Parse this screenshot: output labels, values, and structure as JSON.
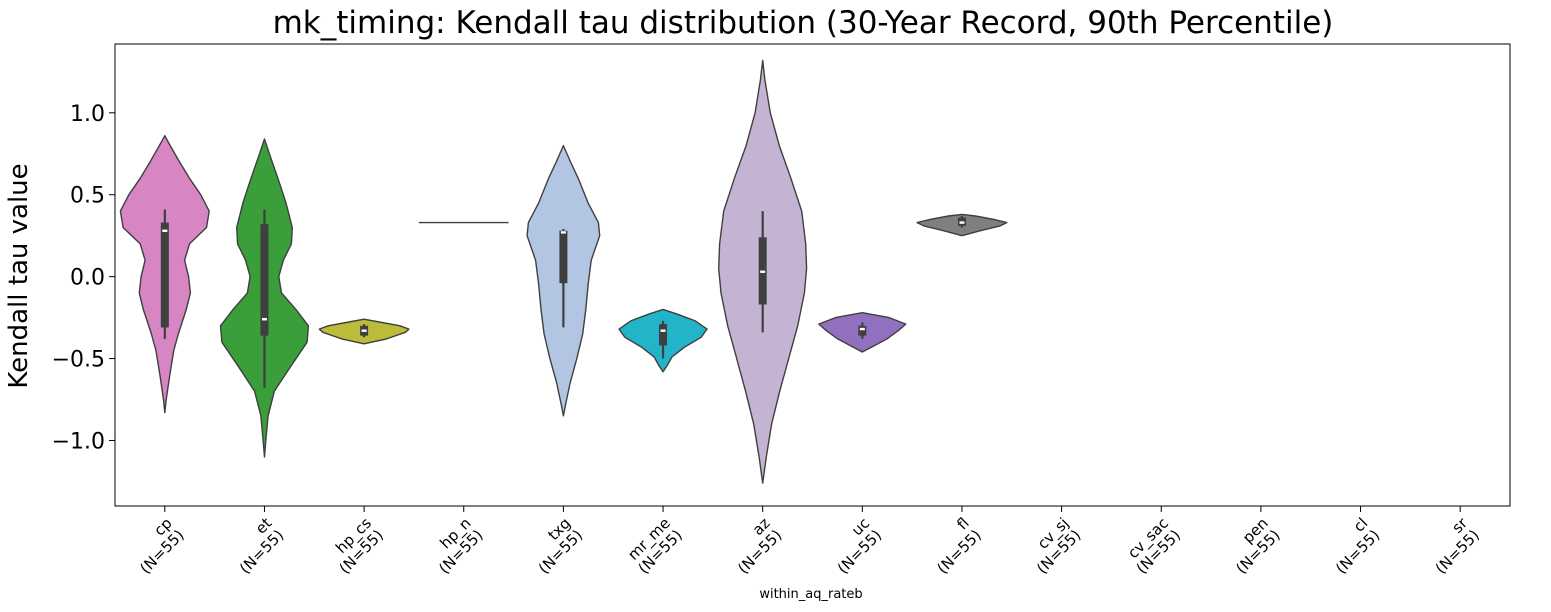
{
  "chart_data": {
    "type": "violin",
    "title": "mk_timing: Kendall tau distribution (30-Year Record, 90th Percentile)",
    "ylabel": "Kendall tau value",
    "xlabel": "within_aq_rateb",
    "ylim": [
      -1.4,
      1.42
    ],
    "yticks": [
      -1.0,
      -0.5,
      0.0,
      0.5,
      1.0
    ],
    "ytick_labels": [
      "−1.0",
      "−0.5",
      "0.0",
      "0.5",
      "1.0"
    ],
    "grid": false,
    "legend": "none",
    "categories": [
      {
        "name": "cp",
        "label_line1": "cp",
        "label_line2": "(N=55)",
        "color": "#d885c4",
        "shape": [
          [
            -0.83,
            0
          ],
          [
            -0.75,
            0.03
          ],
          [
            -0.6,
            0.11
          ],
          [
            -0.45,
            0.2
          ],
          [
            -0.35,
            0.3
          ],
          [
            -0.2,
            0.48
          ],
          [
            -0.1,
            0.57
          ],
          [
            0.0,
            0.53
          ],
          [
            0.1,
            0.44
          ],
          [
            0.2,
            0.55
          ],
          [
            0.3,
            0.93
          ],
          [
            0.4,
            0.99
          ],
          [
            0.5,
            0.8
          ],
          [
            0.6,
            0.55
          ],
          [
            0.7,
            0.33
          ],
          [
            0.8,
            0.12
          ],
          [
            0.86,
            0
          ]
        ],
        "whisker": [
          -0.38,
          0.41
        ],
        "box": [
          -0.31,
          0.33
        ],
        "median": 0.28
      },
      {
        "name": "et",
        "label_line1": "et",
        "label_line2": "(N=55)",
        "color": "#3a9e3a",
        "shape": [
          [
            -1.1,
            0
          ],
          [
            -1.0,
            0.03
          ],
          [
            -0.85,
            0.08
          ],
          [
            -0.7,
            0.22
          ],
          [
            -0.55,
            0.58
          ],
          [
            -0.4,
            0.95
          ],
          [
            -0.3,
            0.98
          ],
          [
            -0.2,
            0.7
          ],
          [
            -0.1,
            0.38
          ],
          [
            0.0,
            0.32
          ],
          [
            0.1,
            0.42
          ],
          [
            0.2,
            0.6
          ],
          [
            0.3,
            0.62
          ],
          [
            0.45,
            0.48
          ],
          [
            0.6,
            0.3
          ],
          [
            0.75,
            0.11
          ],
          [
            0.84,
            0
          ]
        ],
        "whisker": [
          -0.68,
          0.41
        ],
        "box": [
          -0.36,
          0.32
        ],
        "median": -0.26
      },
      {
        "name": "hp_cs",
        "label_line1": "hp_cs",
        "label_line2": "(N=55)",
        "color": "#bcbc3a",
        "shape": [
          [
            -0.41,
            0
          ],
          [
            -0.38,
            0.5
          ],
          [
            -0.34,
            0.92
          ],
          [
            -0.32,
            1.0
          ],
          [
            -0.3,
            0.8
          ],
          [
            -0.28,
            0.4
          ],
          [
            -0.26,
            0
          ]
        ],
        "whisker": [
          -0.37,
          -0.29
        ],
        "box": [
          -0.36,
          -0.3
        ],
        "median": -0.33
      },
      {
        "name": "hp_n",
        "label_line1": "hp_n",
        "label_line2": "(N=55)",
        "color": "#8c564b",
        "flat": 0.33
      },
      {
        "name": "txg",
        "label_line1": "txg",
        "label_line2": "(N=55)",
        "color": "#b2c6e4",
        "shape": [
          [
            -0.85,
            0
          ],
          [
            -0.78,
            0.05
          ],
          [
            -0.65,
            0.15
          ],
          [
            -0.5,
            0.3
          ],
          [
            -0.35,
            0.43
          ],
          [
            -0.2,
            0.5
          ],
          [
            -0.05,
            0.55
          ],
          [
            0.1,
            0.62
          ],
          [
            0.25,
            0.81
          ],
          [
            0.33,
            0.78
          ],
          [
            0.45,
            0.55
          ],
          [
            0.6,
            0.33
          ],
          [
            0.7,
            0.16
          ],
          [
            0.8,
            0
          ]
        ],
        "whisker": [
          -0.31,
          0.29
        ],
        "box": [
          -0.04,
          0.28
        ],
        "median": 0.27
      },
      {
        "name": "mr_me",
        "label_line1": "mr_me",
        "label_line2": "(N=55)",
        "color": "#22b4c8",
        "shape": [
          [
            -0.58,
            0
          ],
          [
            -0.54,
            0.1
          ],
          [
            -0.49,
            0.2
          ],
          [
            -0.43,
            0.48
          ],
          [
            -0.37,
            0.85
          ],
          [
            -0.32,
            0.98
          ],
          [
            -0.27,
            0.72
          ],
          [
            -0.23,
            0.33
          ],
          [
            -0.2,
            0
          ]
        ],
        "whisker": [
          -0.5,
          -0.27
        ],
        "box": [
          -0.42,
          -0.29
        ],
        "median": -0.33
      },
      {
        "name": "az",
        "label_line1": "az",
        "label_line2": "(N=55)",
        "color": "#c5b3d4",
        "shape": [
          [
            -1.26,
            0
          ],
          [
            -1.1,
            0.08
          ],
          [
            -0.9,
            0.2
          ],
          [
            -0.7,
            0.38
          ],
          [
            -0.5,
            0.58
          ],
          [
            -0.3,
            0.78
          ],
          [
            -0.1,
            0.93
          ],
          [
            0.05,
            0.98
          ],
          [
            0.2,
            0.96
          ],
          [
            0.4,
            0.87
          ],
          [
            0.6,
            0.63
          ],
          [
            0.8,
            0.37
          ],
          [
            1.0,
            0.17
          ],
          [
            1.2,
            0.05
          ],
          [
            1.32,
            0
          ]
        ],
        "whisker": [
          -0.34,
          0.4
        ],
        "box": [
          -0.17,
          0.24
        ],
        "median": 0.03
      },
      {
        "name": "uc",
        "label_line1": "uc",
        "label_line2": "(N=55)",
        "color": "#9170c0",
        "shape": [
          [
            -0.46,
            0
          ],
          [
            -0.42,
            0.28
          ],
          [
            -0.38,
            0.55
          ],
          [
            -0.33,
            0.8
          ],
          [
            -0.29,
            0.97
          ],
          [
            -0.25,
            0.6
          ],
          [
            -0.22,
            0
          ]
        ],
        "whisker": [
          -0.38,
          -0.28
        ],
        "box": [
          -0.36,
          -0.3
        ],
        "median": -0.32
      },
      {
        "name": "fl",
        "label_line1": "fl",
        "label_line2": "(N=55)",
        "color": "#7f7f7f",
        "shape": [
          [
            0.25,
            0
          ],
          [
            0.28,
            0.4
          ],
          [
            0.31,
            0.85
          ],
          [
            0.33,
            1.0
          ],
          [
            0.35,
            0.7
          ],
          [
            0.37,
            0.3
          ],
          [
            0.38,
            0
          ]
        ],
        "whisker": [
          0.3,
          0.37
        ],
        "box": [
          0.31,
          0.36
        ],
        "median": 0.33
      },
      {
        "name": "cv_sj",
        "label_line1": "cv_sj",
        "label_line2": "(N=55)",
        "color": "#bcbd22"
      },
      {
        "name": "cv_sac",
        "label_line1": "cv_sac",
        "label_line2": "(N=55)",
        "color": "#17becf"
      },
      {
        "name": "pen",
        "label_line1": "pen",
        "label_line2": "(N=55)",
        "color": "#1f77b4"
      },
      {
        "name": "cl",
        "label_line1": "cl",
        "label_line2": "(N=55)",
        "color": "#ff7f0e"
      },
      {
        "name": "sr",
        "label_line1": "sr",
        "label_line2": "(N=55)",
        "color": "#2ca02c"
      }
    ]
  }
}
